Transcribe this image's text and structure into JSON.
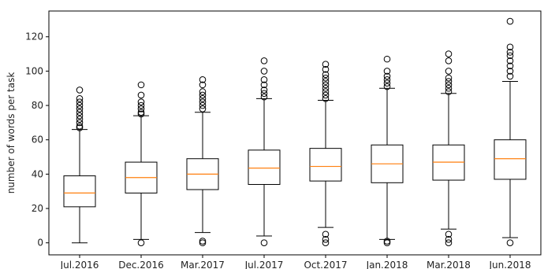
{
  "chart_data": {
    "type": "box",
    "title": "",
    "xlabel": "",
    "ylabel": "number of words per task",
    "ylim": [
      -7,
      135
    ],
    "yticks": [
      0,
      20,
      40,
      60,
      80,
      100,
      120
    ],
    "grid": false,
    "colors": {
      "box": "#000000",
      "median": "#ff7f0e",
      "axes": "#000000"
    },
    "categories": [
      "Jul.2016",
      "Dec.2016",
      "Mar.2017",
      "Jul.2017",
      "Oct.2017",
      "Jan.2018",
      "Mar.2018",
      "Jun.2018"
    ],
    "boxes": [
      {
        "whisker_low": 0,
        "q1": 21,
        "median": 29,
        "q3": 39,
        "whisker_high": 66,
        "outliers": [
          67,
          68,
          70,
          72,
          74,
          76,
          78,
          80,
          82,
          84,
          89
        ]
      },
      {
        "whisker_low": 2,
        "q1": 29,
        "median": 38,
        "q3": 47,
        "whisker_high": 74,
        "outliers": [
          0,
          75,
          76,
          78,
          80,
          82,
          86,
          92
        ]
      },
      {
        "whisker_low": 6,
        "q1": 31,
        "median": 40,
        "q3": 49,
        "whisker_high": 76,
        "outliers": [
          0,
          1,
          78,
          80,
          82,
          84,
          86,
          88,
          92,
          95
        ]
      },
      {
        "whisker_low": 4,
        "q1": 34,
        "median": 43.5,
        "q3": 54,
        "whisker_high": 84,
        "outliers": [
          0,
          85,
          87,
          89,
          92,
          95,
          100,
          106
        ]
      },
      {
        "whisker_low": 9,
        "q1": 36,
        "median": 44.5,
        "q3": 55,
        "whisker_high": 83,
        "outliers": [
          0,
          2,
          5,
          84,
          86,
          88,
          90,
          92,
          94,
          96,
          98,
          101,
          104
        ]
      },
      {
        "whisker_low": 2,
        "q1": 35,
        "median": 46,
        "q3": 57,
        "whisker_high": 90,
        "outliers": [
          0,
          1,
          91,
          93,
          95,
          97,
          100,
          107
        ]
      },
      {
        "whisker_low": 8,
        "q1": 36.5,
        "median": 47,
        "q3": 57,
        "whisker_high": 87,
        "outliers": [
          0,
          2,
          5,
          88,
          90,
          92,
          94,
          96,
          100,
          106,
          110
        ]
      },
      {
        "whisker_low": 3,
        "q1": 37,
        "median": 49,
        "q3": 60,
        "whisker_high": 94,
        "outliers": [
          0,
          97,
          100,
          103,
          106,
          109,
          111,
          114,
          129
        ]
      }
    ]
  }
}
